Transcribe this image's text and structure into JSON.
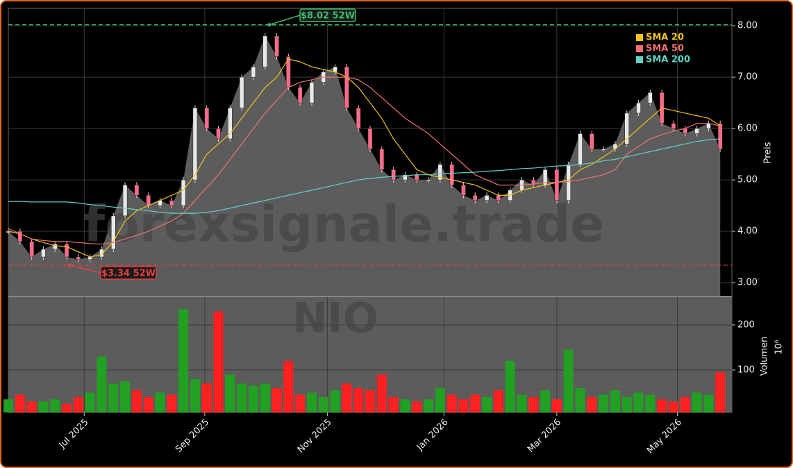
{
  "chart_data": [
    {
      "type": "candlestick",
      "x": [
        0,
        6,
        12,
        18,
        24,
        30,
        36,
        42,
        48,
        54,
        60,
        66,
        72,
        78,
        84,
        90,
        96,
        102,
        108,
        114,
        120,
        126,
        132,
        138,
        144,
        150,
        156,
        162,
        168,
        174,
        180,
        186,
        192,
        198,
        204,
        210,
        216,
        222,
        228,
        234,
        240,
        246,
        252,
        258,
        264,
        270,
        276,
        282,
        288,
        294,
        300,
        306,
        312,
        318,
        324,
        330,
        336,
        342,
        348,
        354,
        360,
        366
      ],
      "values": [
        4.0,
        3.8,
        3.5,
        3.65,
        3.75,
        3.5,
        3.45,
        3.5,
        3.65,
        4.3,
        4.9,
        4.7,
        4.5,
        4.6,
        4.5,
        5.0,
        6.4,
        6.0,
        5.8,
        6.4,
        7.0,
        7.2,
        7.8,
        7.4,
        6.8,
        6.5,
        6.9,
        7.1,
        7.2,
        6.4,
        6.0,
        5.6,
        5.2,
        5.0,
        5.1,
        5.0,
        5.0,
        5.3,
        4.9,
        4.7,
        4.6,
        4.7,
        4.6,
        4.8,
        5.0,
        4.9,
        5.2,
        4.6,
        5.3,
        5.9,
        5.6,
        5.6,
        5.7,
        6.3,
        6.5,
        6.7,
        6.1,
        6.0,
        5.9,
        6.0,
        6.1,
        5.6
      ],
      "up_color": "#22a022",
      "down_color": "#ff2020",
      "area_color": "#5c5c5c",
      "series": [
        {
          "name": "SMA 20",
          "color": "#f2c418",
          "values": [
            4.0,
            3.95,
            3.85,
            3.78,
            3.72,
            3.7,
            3.6,
            3.5,
            3.55,
            3.8,
            4.2,
            4.4,
            4.5,
            4.6,
            4.7,
            4.8,
            5.1,
            5.5,
            5.7,
            5.9,
            6.2,
            6.5,
            6.8,
            7.0,
            7.35,
            7.3,
            7.2,
            7.15,
            7.1,
            7.0,
            6.8,
            6.5,
            6.2,
            5.8,
            5.5,
            5.2,
            5.1,
            5.05,
            5.0,
            4.95,
            4.9,
            4.8,
            4.7,
            4.7,
            4.8,
            4.85,
            4.9,
            4.95,
            5.0,
            5.2,
            5.3,
            5.45,
            5.6,
            5.8,
            6.0,
            6.2,
            6.4,
            6.35,
            6.3,
            6.25,
            6.2,
            6.05
          ]
        },
        {
          "name": "SMA 50",
          "color": "#f07070",
          "values": [
            4.05,
            3.95,
            3.85,
            3.82,
            3.8,
            3.8,
            3.78,
            3.76,
            3.75,
            3.78,
            3.85,
            3.92,
            4.0,
            4.1,
            4.2,
            4.35,
            4.6,
            4.85,
            5.1,
            5.4,
            5.7,
            6.0,
            6.3,
            6.55,
            6.8,
            6.9,
            6.95,
            7.0,
            7.0,
            7.0,
            6.95,
            6.8,
            6.6,
            6.4,
            6.2,
            6.05,
            5.9,
            5.7,
            5.5,
            5.3,
            5.1,
            5.0,
            4.9,
            4.9,
            4.9,
            4.92,
            4.95,
            4.95,
            4.97,
            5.0,
            5.05,
            5.1,
            5.2,
            5.5,
            5.65,
            5.8,
            5.88,
            5.95,
            6.0,
            6.1,
            6.1,
            6.05
          ]
        },
        {
          "name": "SMA 200",
          "color": "#5fd3c8",
          "values": [
            4.58,
            4.58,
            4.57,
            4.57,
            4.57,
            4.57,
            4.55,
            4.52,
            4.5,
            4.47,
            4.45,
            4.42,
            4.4,
            4.37,
            4.35,
            4.35,
            4.35,
            4.37,
            4.4,
            4.45,
            4.5,
            4.55,
            4.6,
            4.65,
            4.7,
            4.75,
            4.8,
            4.85,
            4.9,
            4.95,
            5.0,
            5.03,
            5.05,
            5.07,
            5.08,
            5.1,
            5.1,
            5.12,
            5.13,
            5.14,
            5.15,
            5.17,
            5.18,
            5.2,
            5.22,
            5.23,
            5.25,
            5.27,
            5.28,
            5.3,
            5.33,
            5.37,
            5.4,
            5.45,
            5.5,
            5.55,
            5.6,
            5.65,
            5.7,
            5.75,
            5.78,
            5.8
          ]
        }
      ],
      "xlim": [
        0,
        372
      ],
      "ylim": [
        2.73,
        8.34
      ],
      "yticks": [
        {
          "value": 3,
          "label": "3.00"
        },
        {
          "value": 4,
          "label": "4.00"
        },
        {
          "value": 5,
          "label": "5.00"
        },
        {
          "value": 6,
          "label": "6.00"
        },
        {
          "value": 7,
          "label": "7.00"
        },
        {
          "value": 8,
          "label": "8.00"
        }
      ],
      "ylabel": "Preis",
      "annotations": [
        {
          "value": 8.02,
          "label": "$8.02 52W",
          "color": "#3dbb6a"
        },
        {
          "value": 3.34,
          "label": "$3.34 52W",
          "color": "#e04040"
        }
      ],
      "watermark": "forexsignale.trade",
      "legend": "upper right",
      "grid": true
    },
    {
      "type": "bar",
      "x": [
        0,
        6,
        12,
        18,
        24,
        30,
        36,
        42,
        48,
        54,
        60,
        66,
        72,
        78,
        84,
        90,
        96,
        102,
        108,
        114,
        120,
        126,
        132,
        138,
        144,
        150,
        156,
        162,
        168,
        174,
        180,
        186,
        192,
        198,
        204,
        210,
        216,
        222,
        228,
        234,
        240,
        246,
        252,
        258,
        264,
        270,
        276,
        282,
        288,
        294,
        300,
        306,
        312,
        318,
        324,
        330,
        336,
        342,
        348,
        354,
        360,
        366
      ],
      "values": [
        35,
        45,
        30,
        30,
        35,
        25,
        40,
        50,
        130,
        70,
        75,
        55,
        40,
        50,
        45,
        235,
        80,
        70,
        230,
        90,
        70,
        65,
        70,
        60,
        120,
        45,
        50,
        40,
        55,
        70,
        60,
        55,
        90,
        40,
        35,
        30,
        35,
        60,
        45,
        35,
        45,
        40,
        55,
        120,
        45,
        40,
        55,
        35,
        145,
        60,
        40,
        45,
        55,
        40,
        50,
        45,
        35,
        30,
        40,
        50,
        45,
        95
      ],
      "xlim": [
        0,
        372
      ],
      "ylim": [
        6,
        263
      ],
      "yticks": [
        100,
        200
      ],
      "xticks": [
        {
          "value": 39,
          "label": "Jul 2025"
        },
        {
          "value": 101,
          "label": "Sep 2025"
        },
        {
          "value": 164,
          "label": "Nov 2025"
        },
        {
          "value": 224,
          "label": "Jan 2026"
        },
        {
          "value": 282,
          "label": "Mar 2026"
        },
        {
          "value": 344,
          "label": "May 2026"
        }
      ],
      "ylabel": "Volumen",
      "offset_label": "10⁶",
      "watermark": "NIO",
      "grid": true
    }
  ]
}
